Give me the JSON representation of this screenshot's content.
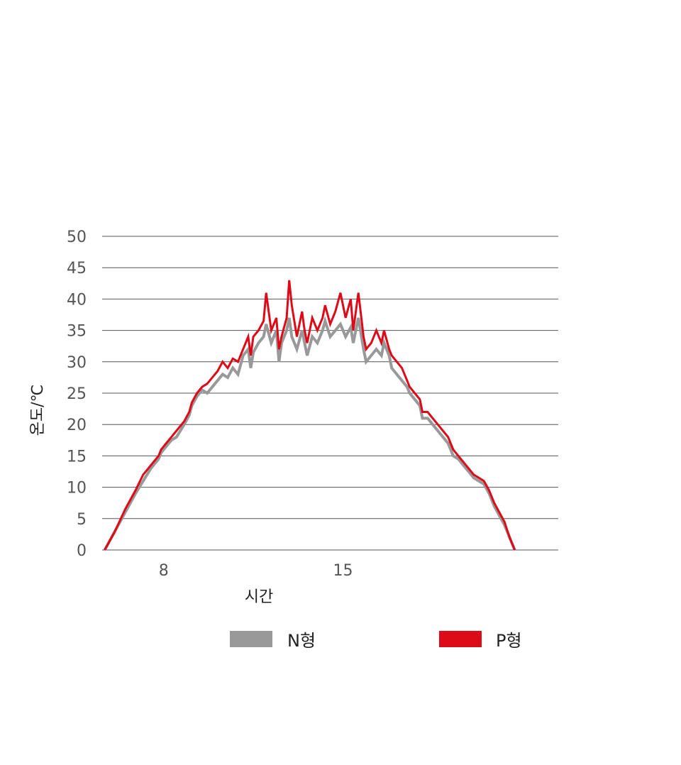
{
  "chart_data": {
    "type": "line",
    "title": "",
    "xlabel": "시간",
    "ylabel": "온도/℃",
    "ylim": [
      0,
      50
    ],
    "yticks": [
      "0",
      "5",
      "10",
      "15",
      "20",
      "25",
      "30",
      "35",
      "40",
      "45",
      "50"
    ],
    "xlim": [
      5.6,
      23.4
    ],
    "xticks": [
      {
        "value": 8,
        "label": "8"
      },
      {
        "value": 15,
        "label": "15"
      }
    ],
    "grid": true,
    "legend": "bottom",
    "series": [
      {
        "name": "N형",
        "color": "#999999",
        "points": [
          [
            5.7,
            0
          ],
          [
            6.1,
            3
          ],
          [
            6.5,
            6
          ],
          [
            6.9,
            9
          ],
          [
            7.2,
            11
          ],
          [
            7.5,
            13
          ],
          [
            7.8,
            14.5
          ],
          [
            7.9,
            15.5
          ],
          [
            8.1,
            16.5
          ],
          [
            8.3,
            17.5
          ],
          [
            8.5,
            18
          ],
          [
            8.8,
            20
          ],
          [
            9.0,
            21.5
          ],
          [
            9.1,
            23
          ],
          [
            9.3,
            24.5
          ],
          [
            9.5,
            25.5
          ],
          [
            9.7,
            25
          ],
          [
            9.9,
            26
          ],
          [
            10.1,
            27
          ],
          [
            10.3,
            28
          ],
          [
            10.5,
            27.5
          ],
          [
            10.7,
            29
          ],
          [
            10.9,
            28
          ],
          [
            11.1,
            31
          ],
          [
            11.3,
            32
          ],
          [
            11.4,
            29
          ],
          [
            11.5,
            31.5
          ],
          [
            11.7,
            33
          ],
          [
            11.9,
            34
          ],
          [
            12.0,
            36
          ],
          [
            12.2,
            33
          ],
          [
            12.4,
            35
          ],
          [
            12.5,
            30
          ],
          [
            12.6,
            33
          ],
          [
            12.8,
            35
          ],
          [
            12.9,
            37
          ],
          [
            13.0,
            34
          ],
          [
            13.2,
            32
          ],
          [
            13.4,
            35
          ],
          [
            13.5,
            33
          ],
          [
            13.6,
            31
          ],
          [
            13.8,
            34
          ],
          [
            14.0,
            33
          ],
          [
            14.2,
            35
          ],
          [
            14.3,
            36.5
          ],
          [
            14.5,
            34
          ],
          [
            14.7,
            35
          ],
          [
            14.9,
            36
          ],
          [
            15.1,
            34
          ],
          [
            15.3,
            35.5
          ],
          [
            15.4,
            33
          ],
          [
            15.6,
            37
          ],
          [
            15.8,
            32
          ],
          [
            15.9,
            30
          ],
          [
            16.1,
            31
          ],
          [
            16.3,
            32
          ],
          [
            16.5,
            31
          ],
          [
            16.6,
            33
          ],
          [
            16.8,
            31
          ],
          [
            16.9,
            29
          ],
          [
            17.1,
            28
          ],
          [
            17.3,
            27
          ],
          [
            17.5,
            26
          ],
          [
            17.6,
            25
          ],
          [
            17.8,
            24
          ],
          [
            18.0,
            23
          ],
          [
            18.1,
            21
          ],
          [
            18.3,
            21
          ],
          [
            18.5,
            20
          ],
          [
            18.7,
            19
          ],
          [
            18.9,
            18
          ],
          [
            19.1,
            17
          ],
          [
            19.3,
            15
          ],
          [
            19.5,
            14.5
          ],
          [
            19.7,
            13.5
          ],
          [
            19.9,
            12.5
          ],
          [
            20.1,
            11.5
          ],
          [
            20.3,
            11
          ],
          [
            20.5,
            10.5
          ],
          [
            20.7,
            9
          ],
          [
            20.9,
            7
          ],
          [
            21.1,
            5.5
          ],
          [
            21.3,
            4
          ],
          [
            21.5,
            2
          ],
          [
            21.7,
            0
          ]
        ]
      },
      {
        "name": "P형",
        "color": "#dd0a17",
        "points": [
          [
            5.7,
            0
          ],
          [
            6.1,
            3
          ],
          [
            6.5,
            6.5
          ],
          [
            6.9,
            9.5
          ],
          [
            7.2,
            12
          ],
          [
            7.5,
            13.5
          ],
          [
            7.8,
            15
          ],
          [
            7.9,
            16
          ],
          [
            8.1,
            17
          ],
          [
            8.3,
            18
          ],
          [
            8.5,
            19
          ],
          [
            8.8,
            20.5
          ],
          [
            9.0,
            22
          ],
          [
            9.1,
            23.5
          ],
          [
            9.3,
            25
          ],
          [
            9.5,
            26
          ],
          [
            9.7,
            26.5
          ],
          [
            9.9,
            27.5
          ],
          [
            10.1,
            28.5
          ],
          [
            10.3,
            30
          ],
          [
            10.5,
            29
          ],
          [
            10.7,
            30.5
          ],
          [
            10.9,
            30
          ],
          [
            11.1,
            32
          ],
          [
            11.3,
            34
          ],
          [
            11.4,
            31
          ],
          [
            11.5,
            34
          ],
          [
            11.7,
            35
          ],
          [
            11.9,
            36.5
          ],
          [
            12.0,
            41
          ],
          [
            12.2,
            35
          ],
          [
            12.4,
            37
          ],
          [
            12.5,
            32
          ],
          [
            12.6,
            34
          ],
          [
            12.8,
            37
          ],
          [
            12.9,
            43
          ],
          [
            13.0,
            39
          ],
          [
            13.2,
            34
          ],
          [
            13.4,
            38
          ],
          [
            13.5,
            35
          ],
          [
            13.6,
            33
          ],
          [
            13.8,
            37
          ],
          [
            14.0,
            35
          ],
          [
            14.2,
            37
          ],
          [
            14.3,
            39
          ],
          [
            14.5,
            36
          ],
          [
            14.7,
            38
          ],
          [
            14.9,
            41
          ],
          [
            15.1,
            37
          ],
          [
            15.3,
            40
          ],
          [
            15.4,
            35
          ],
          [
            15.6,
            41
          ],
          [
            15.8,
            34
          ],
          [
            15.9,
            32
          ],
          [
            16.1,
            33
          ],
          [
            16.3,
            35
          ],
          [
            16.5,
            33
          ],
          [
            16.6,
            35
          ],
          [
            16.8,
            32
          ],
          [
            16.9,
            31
          ],
          [
            17.1,
            30
          ],
          [
            17.3,
            29
          ],
          [
            17.5,
            27
          ],
          [
            17.6,
            26
          ],
          [
            17.8,
            25
          ],
          [
            18.0,
            24
          ],
          [
            18.1,
            22
          ],
          [
            18.3,
            22
          ],
          [
            18.5,
            21
          ],
          [
            18.7,
            20
          ],
          [
            18.9,
            19
          ],
          [
            19.1,
            18
          ],
          [
            19.3,
            16
          ],
          [
            19.5,
            15
          ],
          [
            19.7,
            14
          ],
          [
            19.9,
            13
          ],
          [
            20.1,
            12
          ],
          [
            20.3,
            11.5
          ],
          [
            20.5,
            11
          ],
          [
            20.7,
            9.5
          ],
          [
            20.9,
            7.5
          ],
          [
            21.1,
            6
          ],
          [
            21.3,
            4.5
          ],
          [
            21.5,
            2
          ],
          [
            21.7,
            0
          ]
        ]
      }
    ]
  }
}
